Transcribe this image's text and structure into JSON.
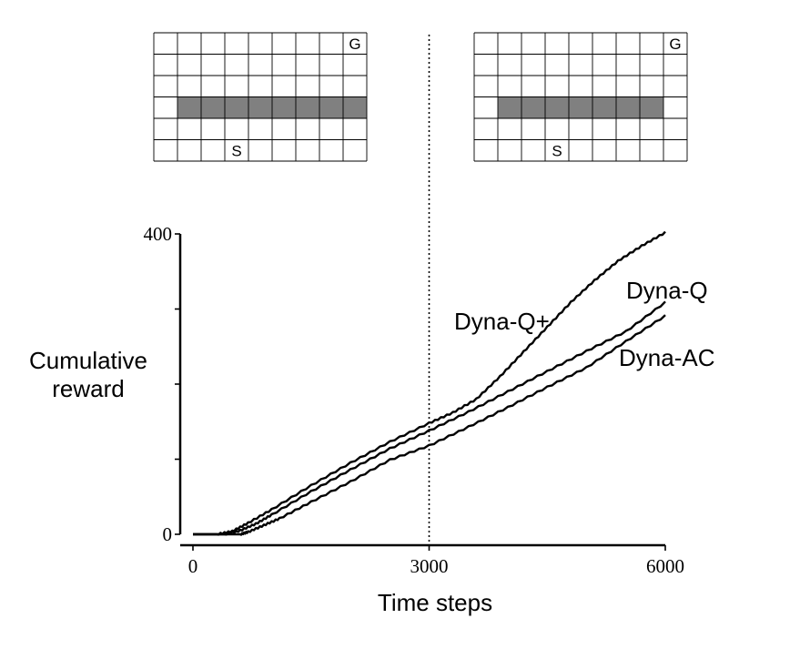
{
  "chart_data": {
    "type": "line",
    "xlabel": "Time steps",
    "ylabel_lines": [
      "Cumulative",
      "reward"
    ],
    "xlim": [
      0,
      6000
    ],
    "ylim": [
      0,
      400
    ],
    "x_ticks": [
      0,
      3000,
      6000
    ],
    "x_tick_labels": [
      "0",
      "3000",
      "6000"
    ],
    "y_minor_ticks": [
      0,
      100,
      200,
      300,
      400
    ],
    "y_tick_labels": [
      {
        "value": 0,
        "label": "0"
      },
      {
        "value": 400,
        "label": "400"
      }
    ],
    "change_marker_x": 3000,
    "grid": false,
    "legend": "inline labels at line ends",
    "series": [
      {
        "name": "Dyna-Q+",
        "x": [
          0,
          300,
          500,
          700,
          1000,
          1500,
          2000,
          2500,
          3000,
          3300,
          3600,
          3900,
          4200,
          4500,
          4800,
          5100,
          5400,
          5700,
          6000
        ],
        "values": [
          0,
          0,
          4,
          15,
          33,
          65,
          95,
          123,
          148,
          162,
          180,
          210,
          243,
          276,
          309,
          338,
          364,
          384,
          402
        ]
      },
      {
        "name": "Dyna-Q",
        "x": [
          0,
          400,
          600,
          800,
          1000,
          1500,
          2000,
          2500,
          3000,
          3500,
          4000,
          4500,
          5000,
          5500,
          6000
        ],
        "values": [
          0,
          0,
          5,
          14,
          26,
          57,
          86,
          114,
          138,
          163,
          190,
          217,
          244,
          270,
          309
        ]
      },
      {
        "name": "Dyna-AC",
        "x": [
          0,
          600,
          700,
          900,
          1100,
          1500,
          2000,
          2500,
          3000,
          3500,
          4000,
          4500,
          5000,
          5500,
          6000
        ],
        "values": [
          0,
          0,
          3,
          12,
          21,
          43,
          70,
          99,
          118,
          143,
          169,
          196,
          222,
          257,
          291
        ]
      }
    ]
  },
  "gridworlds": [
    {
      "rows": 6,
      "cols": 9,
      "wall": {
        "row": 3,
        "col_start": 1,
        "col_end": 9
      },
      "goal": {
        "row": 0,
        "col": 8,
        "label": "G"
      },
      "start": {
        "row": 5,
        "col": 3,
        "label": "S"
      },
      "wall_color": "#808080"
    },
    {
      "rows": 6,
      "cols": 9,
      "wall": {
        "row": 3,
        "col_start": 1,
        "col_end": 8
      },
      "goal": {
        "row": 0,
        "col": 8,
        "label": "G"
      },
      "start": {
        "row": 5,
        "col": 3,
        "label": "S"
      },
      "wall_color": "#808080"
    }
  ]
}
